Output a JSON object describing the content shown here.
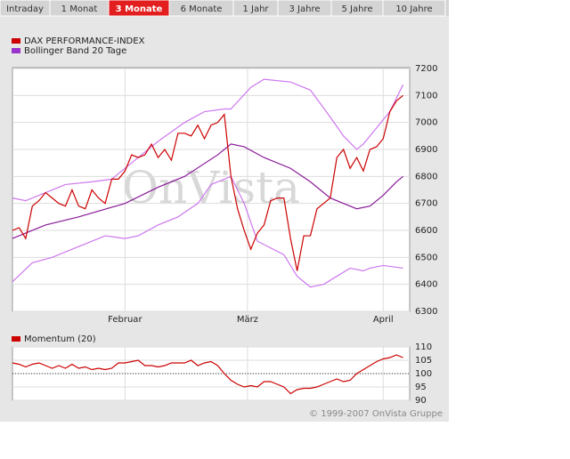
{
  "tabs": [
    "Intraday",
    "1 Monat",
    "3 Monate",
    "6 Monate",
    "1 Jahr",
    "3 Jahre",
    "5 Jahre",
    "10 Jahre"
  ],
  "active_tab": 2,
  "chart_data": [
    {
      "type": "line",
      "watermark": "OnVista",
      "xlim": [
        0,
        60
      ],
      "xticks": [
        {
          "value": 17,
          "label": "Februar"
        },
        {
          "value": 35.5,
          "label": "März"
        },
        {
          "value": 56,
          "label": "April"
        }
      ],
      "ylim": [
        6300,
        7200
      ],
      "yticks": [
        6300,
        6400,
        6500,
        6600,
        6700,
        6800,
        6900,
        7000,
        7100,
        7200
      ],
      "grid": true,
      "series": [
        {
          "name": "DAX PERFORMANCE-INDEX",
          "color": "#cc0000",
          "values": [
            6600,
            6610,
            6570,
            6690,
            6710,
            6740,
            6720,
            6700,
            6690,
            6750,
            6690,
            6680,
            6750,
            6720,
            6700,
            6790,
            6790,
            6820,
            6880,
            6870,
            6880,
            6920,
            6870,
            6900,
            6860,
            6960,
            6960,
            6950,
            6990,
            6940,
            6990,
            7000,
            7030,
            6800,
            6680,
            6600,
            6530,
            6590,
            6620,
            6710,
            6720,
            6720,
            6570,
            6450,
            6580,
            6580,
            6680,
            6700,
            6720,
            6870,
            6900,
            6830,
            6870,
            6820,
            6900,
            6910,
            6940,
            7040,
            7080,
            7100
          ]
        }
      ],
      "bands": {
        "name": "Bollinger Band 20 Tage",
        "color": "#9933cc",
        "middle_color": "#8a1a9a",
        "outer_color": "#cc77ee",
        "upper": {
          "x": [
            0,
            2,
            5,
            8,
            12,
            15,
            18,
            22,
            26,
            29,
            32,
            33,
            36,
            38,
            42,
            45,
            48,
            50,
            52,
            53,
            55,
            57,
            59
          ],
          "values": [
            6720,
            6710,
            6740,
            6770,
            6780,
            6790,
            6850,
            6930,
            7000,
            7040,
            7050,
            7050,
            7130,
            7160,
            7150,
            7120,
            7020,
            6950,
            6900,
            6920,
            6980,
            7040,
            7140
          ]
        },
        "middle": {
          "x": [
            0,
            5,
            10,
            17,
            22,
            26,
            31,
            33,
            35,
            38,
            42,
            45,
            48,
            50,
            52,
            54,
            56,
            58,
            59
          ],
          "values": [
            6570,
            6620,
            6650,
            6700,
            6760,
            6800,
            6880,
            6920,
            6910,
            6870,
            6830,
            6780,
            6720,
            6700,
            6680,
            6690,
            6730,
            6780,
            6800
          ]
        },
        "lower": {
          "x": [
            0,
            3,
            6,
            9,
            12,
            14,
            17,
            19,
            22,
            25,
            28,
            30,
            33,
            35,
            37,
            41,
            43,
            45,
            47,
            49,
            51,
            53,
            54,
            56,
            59
          ],
          "values": [
            6410,
            6480,
            6500,
            6530,
            6560,
            6580,
            6570,
            6580,
            6620,
            6650,
            6700,
            6770,
            6800,
            6700,
            6560,
            6510,
            6430,
            6390,
            6400,
            6430,
            6460,
            6450,
            6460,
            6470,
            6460
          ]
        }
      }
    },
    {
      "type": "line",
      "xlim": [
        0,
        60
      ],
      "xticks": [
        {
          "value": 17,
          "label": "Februar"
        },
        {
          "value": 35.5,
          "label": "März"
        },
        {
          "value": 56,
          "label": "April"
        }
      ],
      "ylim": [
        90,
        110
      ],
      "yticks": [
        90,
        95,
        100,
        105,
        110
      ],
      "reference": 100,
      "grid": true,
      "series": [
        {
          "name": "Momentum (20)",
          "color": "#cc0000",
          "values": [
            104,
            103.5,
            102.5,
            103.5,
            104,
            103,
            102,
            103,
            102,
            103.5,
            102,
            102.5,
            101.5,
            102,
            101.5,
            102,
            104,
            104,
            104.5,
            105,
            103,
            103,
            102.5,
            103,
            104,
            104,
            104,
            105,
            103,
            104,
            104.5,
            103,
            100,
            97.5,
            96,
            95,
            95.5,
            95,
            97,
            97,
            96,
            95,
            92.5,
            94,
            94.5,
            94.5,
            95,
            96,
            97,
            98,
            97,
            97.5,
            100,
            101.5,
            103,
            104.5,
            105.5,
            106,
            107,
            106
          ]
        }
      ]
    }
  ],
  "copyright": "© 1999-2007 OnVista Gruppe"
}
